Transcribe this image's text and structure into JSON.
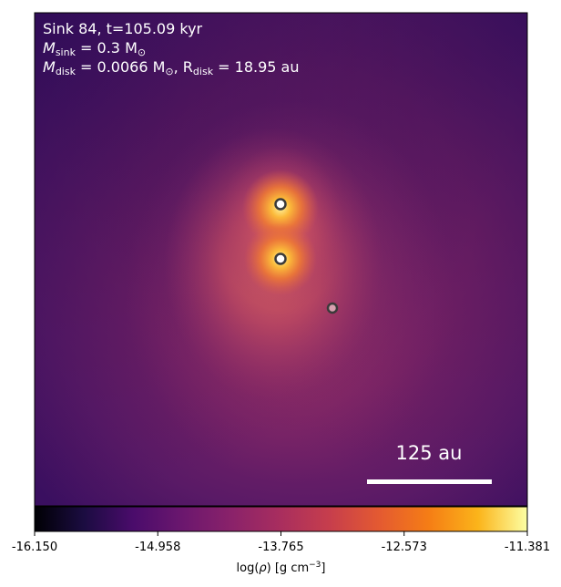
{
  "annotation": {
    "line1": "Sink 84, t=105.09 kyr",
    "line2_symbol": "M",
    "line2_sub": "sink",
    "line2_eq": " = 0.3 M",
    "line2_unit_sub": "⊙",
    "line3_symbol": "M",
    "line3_sub": "disk",
    "line3_eq": " = 0.0066 M",
    "line3_unit_sub": "⊙",
    "line3_sep": ", R",
    "line3_sub2": "disk",
    "line3_eq2": " = 18.95 au"
  },
  "scale_bar": {
    "label": "125 au"
  },
  "colorbar": {
    "ticks": [
      "-16.150",
      "-14.958",
      "-13.765",
      "-12.573",
      "-11.381"
    ],
    "label_prefix": "log(",
    "label_rho": "ρ",
    "label_suffix": ") [g cm",
    "label_exp": "−3",
    "label_close": "]",
    "colormap": "inferno/plasma"
  },
  "sinks": [
    {
      "name": "sink-1",
      "brightness": "bright"
    },
    {
      "name": "sink-2",
      "brightness": "bright"
    },
    {
      "name": "sink-3",
      "brightness": "faint"
    }
  ]
}
